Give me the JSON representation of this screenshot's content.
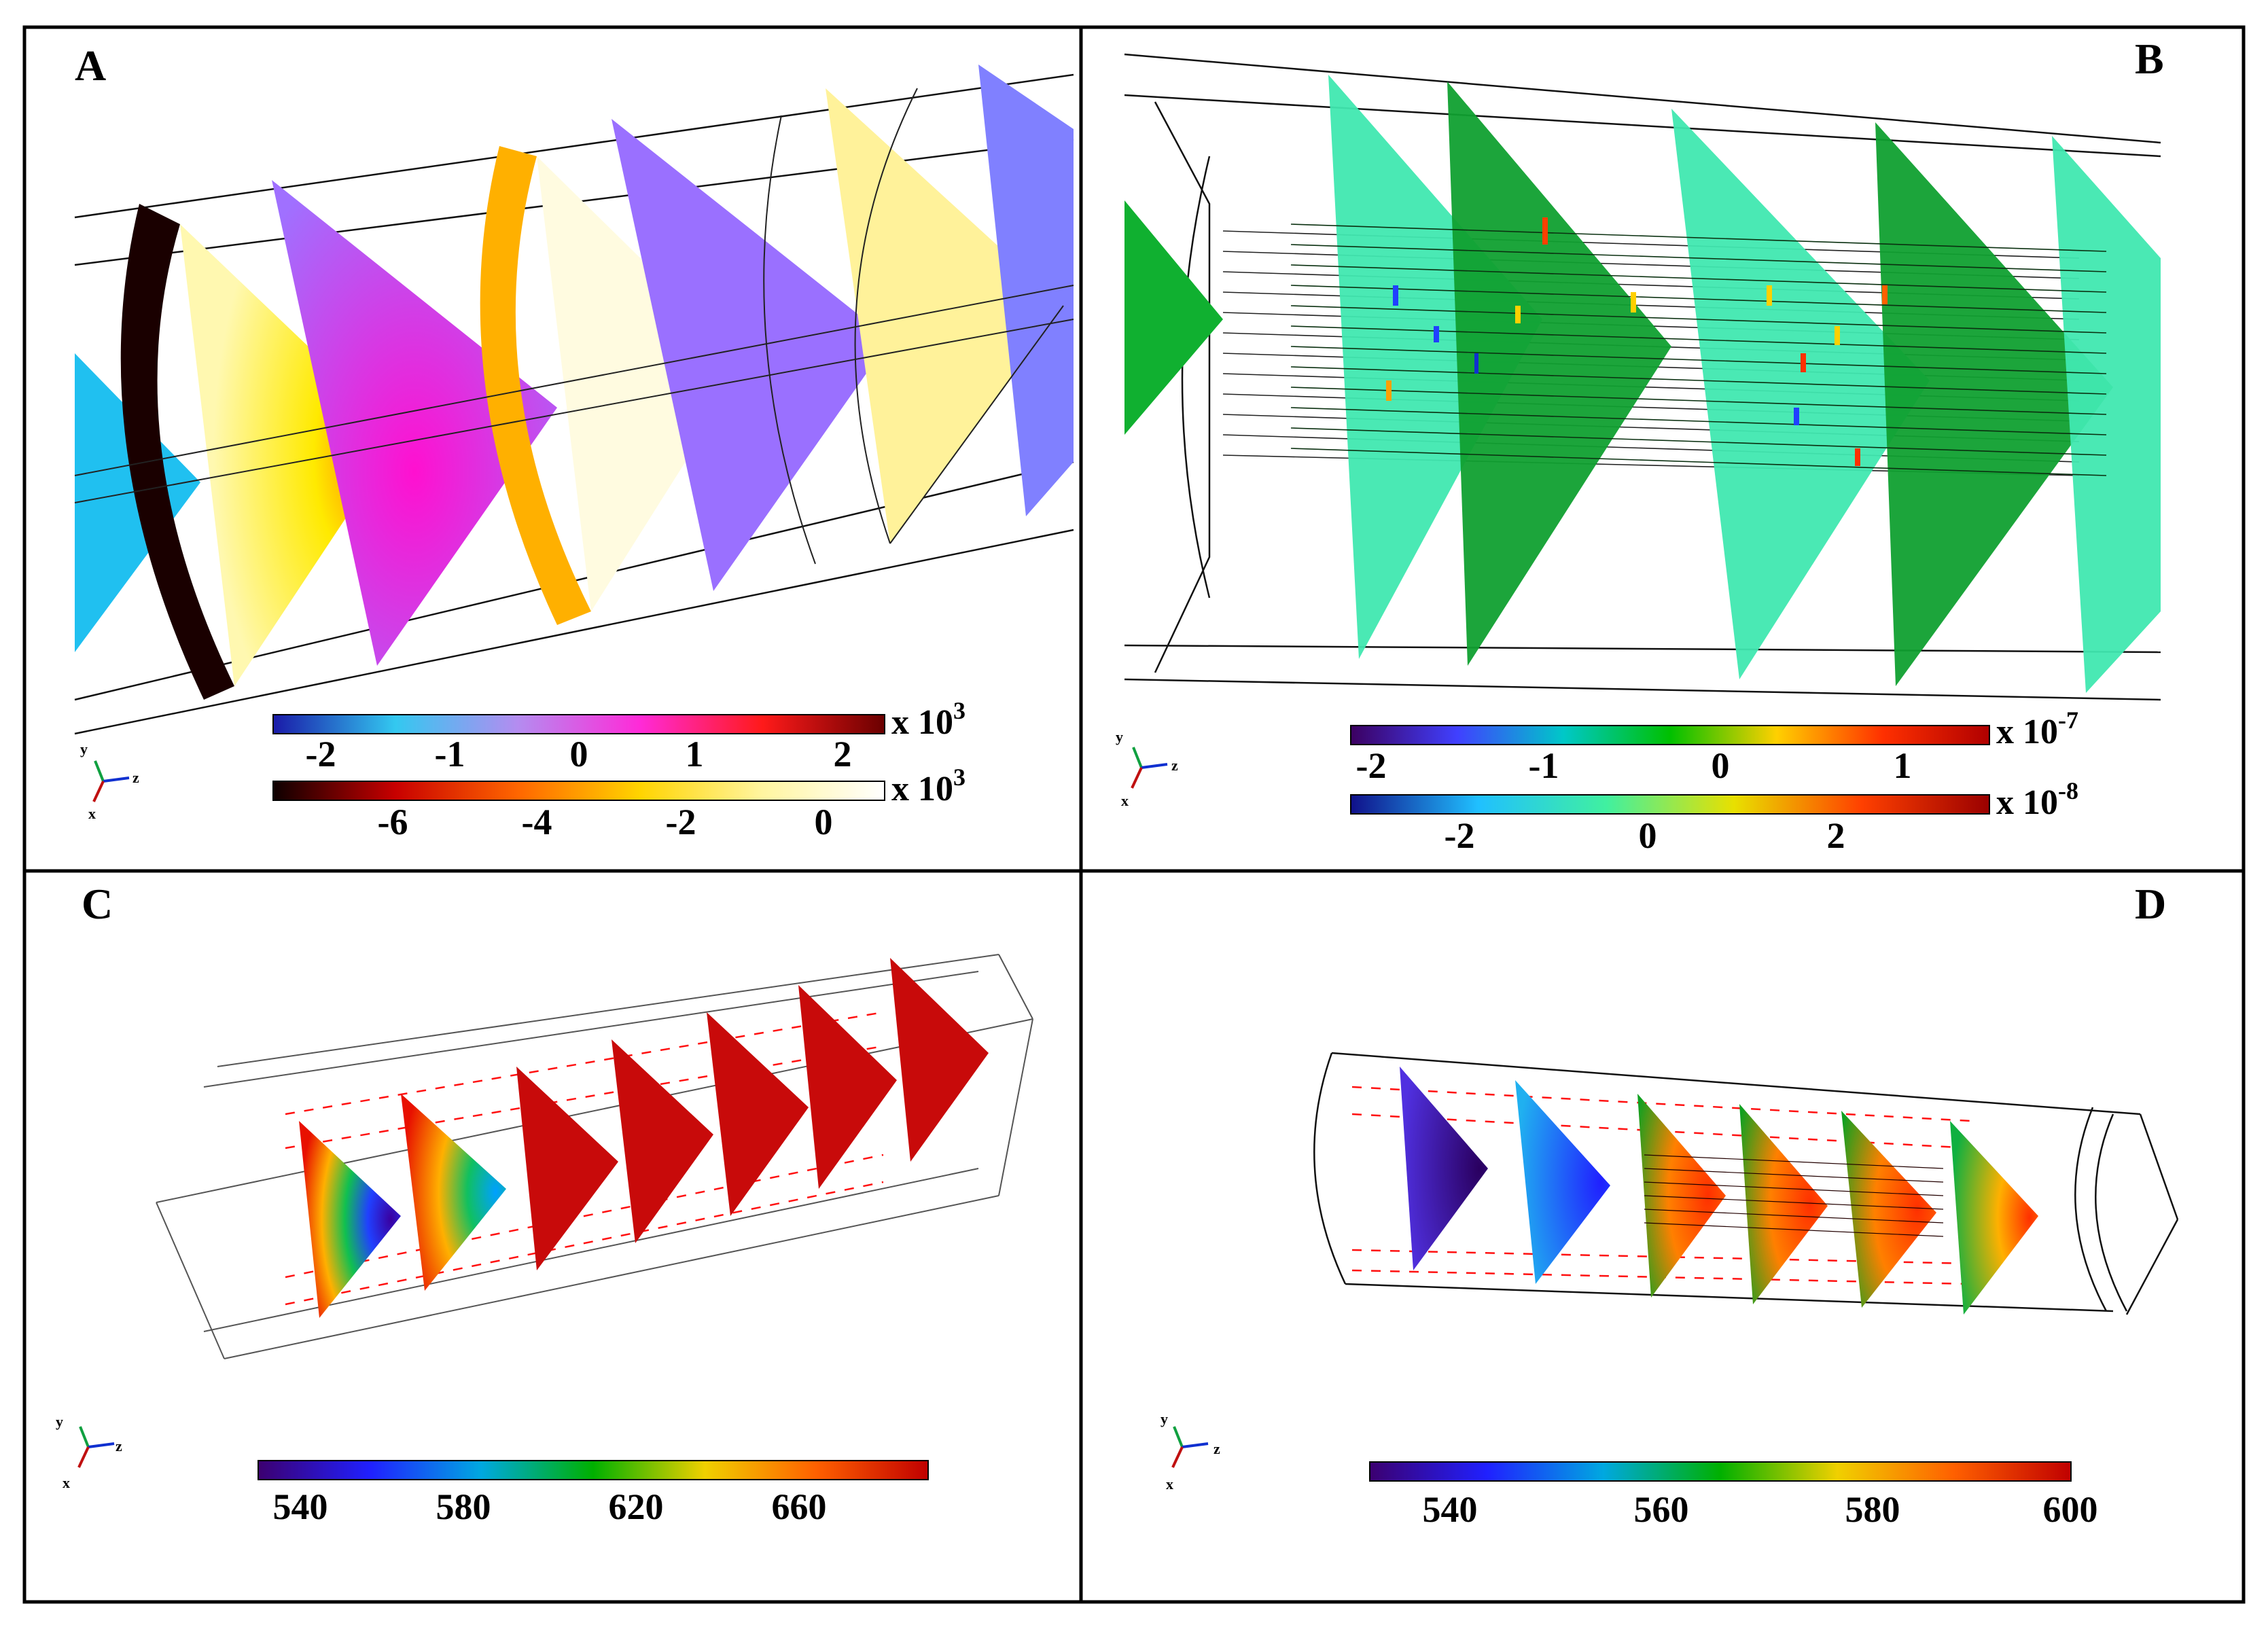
{
  "panels": [
    {
      "id": "A",
      "label": "A",
      "colorbars": [
        {
          "ticks": [
            "-2",
            "-1",
            "0",
            "1",
            "2"
          ],
          "multiplier_base": "x 10",
          "multiplier_exp": "3",
          "colors": [
            "#1a1aa8",
            "#33c8f0",
            "#b48cf0",
            "#ff2ad8",
            "#ff1a1a",
            "#6a0000"
          ]
        },
        {
          "ticks": [
            "-6",
            "-4",
            "-2",
            "0"
          ],
          "multiplier_base": "x 10",
          "multiplier_exp": "3",
          "colors": [
            "#0d0000",
            "#c80000",
            "#ff6600",
            "#ffd400",
            "#fff5a0",
            "#ffffff"
          ]
        }
      ],
      "axes": {
        "y": "y",
        "z": "z",
        "x": "x"
      }
    },
    {
      "id": "B",
      "label": "B",
      "colorbars": [
        {
          "ticks": [
            "-2",
            "-1",
            "0",
            "1"
          ],
          "multiplier_base": "x 10",
          "multiplier_exp": "-7",
          "colors": [
            "#3c0060",
            "#4040ff",
            "#00c8c8",
            "#00c000",
            "#ffd000",
            "#ff3000",
            "#b00000"
          ]
        },
        {
          "ticks": [
            "-2",
            "0",
            "2"
          ],
          "multiplier_base": "x 10",
          "multiplier_exp": "-8",
          "colors": [
            "#10108a",
            "#20c0ff",
            "#40f0a0",
            "#e8e000",
            "#ff4000",
            "#9a0000"
          ]
        }
      ],
      "axes": {
        "y": "y",
        "z": "z",
        "x": "x"
      }
    },
    {
      "id": "C",
      "label": "C",
      "colorbars": [
        {
          "ticks": [
            "540",
            "580",
            "620",
            "660"
          ],
          "multiplier_base": "",
          "multiplier_exp": "",
          "colors": [
            "#3c0070",
            "#2020ff",
            "#00a8e0",
            "#00b000",
            "#f0d000",
            "#ff6000",
            "#c00000"
          ]
        }
      ],
      "axes": {
        "y": "y",
        "z": "z",
        "x": "x"
      }
    },
    {
      "id": "D",
      "label": "D",
      "colorbars": [
        {
          "ticks": [
            "540",
            "560",
            "580",
            "600"
          ],
          "multiplier_base": "",
          "multiplier_exp": "",
          "colors": [
            "#3c0070",
            "#2020ff",
            "#00a8e0",
            "#00b000",
            "#f0d000",
            "#ff6000",
            "#c00000"
          ]
        }
      ],
      "axes": {
        "y": "y",
        "z": "z",
        "x": "x"
      }
    }
  ],
  "palette": {
    "frame": "#000000",
    "wire": "#222222",
    "arrow_red": "#ff1010",
    "yellow_slice": "#fff080",
    "purple_slice": "#8080ff",
    "magenta_slice": "#e040f0",
    "cyan_slice": "#20c0f0",
    "dark_band": "#1a0000",
    "orange_band": "#ffb000",
    "teal_slice": "#40f0b0",
    "green_slice": "#10a020",
    "red_slice": "#c80a0a"
  }
}
